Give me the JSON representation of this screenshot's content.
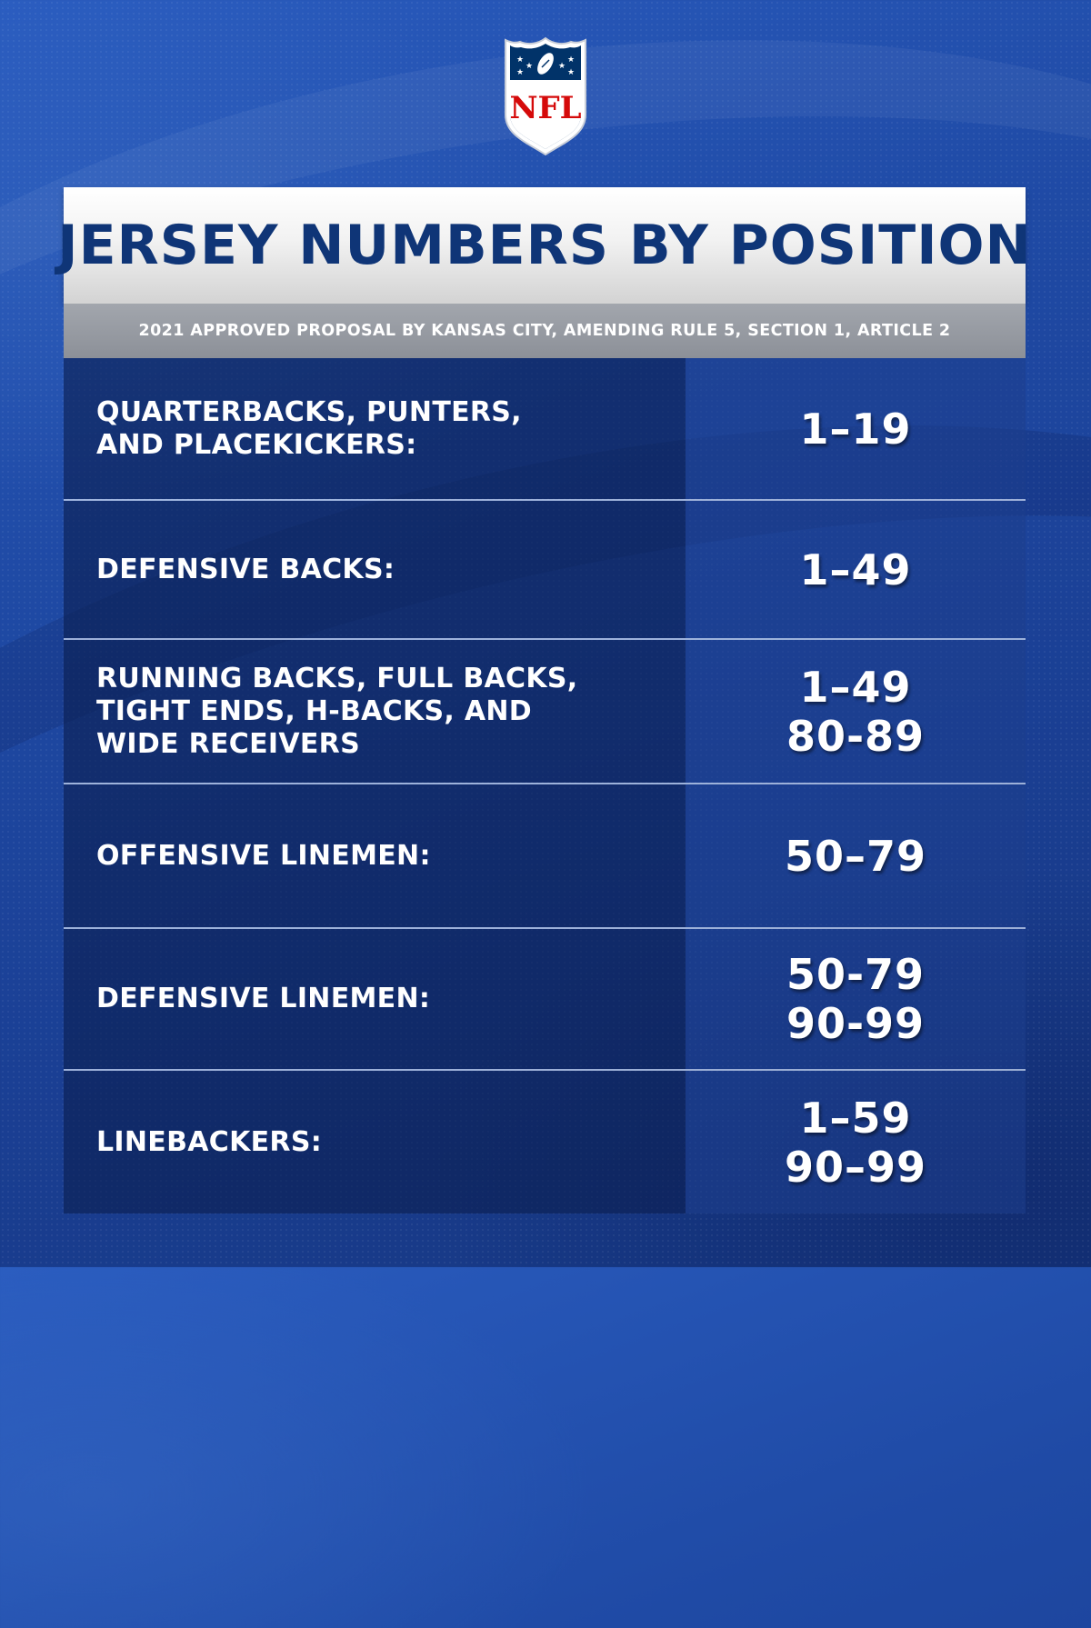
{
  "colors": {
    "background": "#1f4aa5",
    "title_text": "#0f3577",
    "subtitle_bar": "#979ba2",
    "nfl_red": "#d50a0a",
    "nfl_navy": "#013369"
  },
  "logo": {
    "icon": "nfl-shield-icon",
    "text": "NFL"
  },
  "header": {
    "title": "JERSEY NUMBERS BY POSITION",
    "subtitle": "2021 APPROVED PROPOSAL BY KANSAS CITY, AMENDING RULE 5, SECTION 1, ARTICLE 2"
  },
  "rows": [
    {
      "position": "QUARTERBACKS, PUNTERS,\nAND PLACEKICKERS:",
      "numbers": [
        "1–19"
      ]
    },
    {
      "position": "DEFENSIVE BACKS:",
      "numbers": [
        "1–49"
      ]
    },
    {
      "position": "RUNNING BACKS, FULL BACKS,\nTIGHT ENDS, H-BACKS, AND\nWIDE RECEIVERS",
      "numbers": [
        "1–49",
        "80-89"
      ]
    },
    {
      "position": "OFFENSIVE LINEMEN:",
      "numbers": [
        "50–79"
      ]
    },
    {
      "position": "DEFENSIVE LINEMEN:",
      "numbers": [
        "50-79",
        "90-99"
      ]
    },
    {
      "position": "LINEBACKERS:",
      "numbers": [
        "1–59",
        "90–99"
      ]
    }
  ]
}
